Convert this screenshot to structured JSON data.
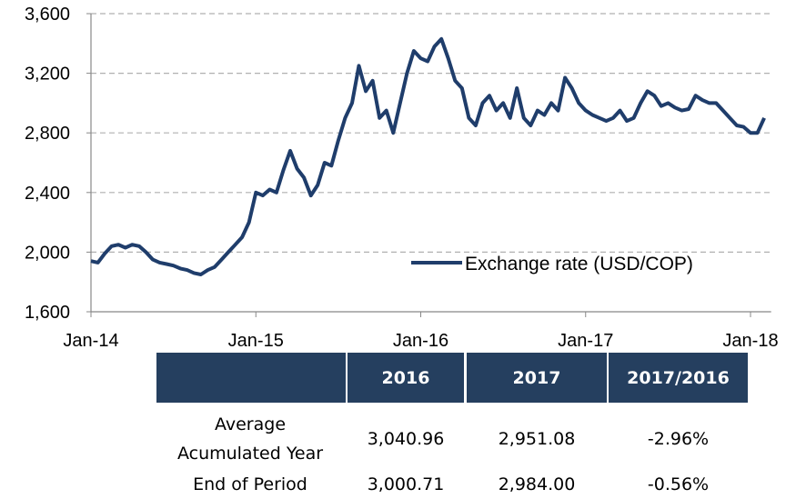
{
  "chart_data": {
    "type": "line",
    "x": [
      0,
      0.5,
      1,
      1.5,
      2,
      2.5,
      3,
      3.5,
      4,
      4.5,
      5,
      5.5,
      6,
      6.5,
      7,
      7.5,
      8,
      8.5,
      9,
      9.5,
      10,
      10.5,
      11,
      11.5,
      12,
      12.5,
      13,
      13.5,
      14,
      14.5,
      15,
      15.5,
      16,
      16.5,
      17,
      17.5,
      18,
      18.5,
      19,
      19.5,
      20,
      20.5,
      21,
      21.5,
      22,
      22.5,
      23,
      23.5,
      24,
      24.5,
      25,
      25.5,
      26,
      26.5,
      27,
      27.5,
      28,
      28.5,
      29,
      29.5,
      30,
      30.5,
      31,
      31.5,
      32,
      32.5,
      33,
      33.5,
      34,
      34.5,
      35,
      35.5,
      36,
      36.5,
      37,
      37.5,
      38,
      38.5,
      39,
      39.5,
      40,
      40.5,
      41,
      41.5,
      42,
      42.5,
      43,
      43.5,
      44,
      44.5,
      45,
      45.5,
      46,
      46.5,
      47,
      47.5,
      48,
      48.5,
      49
    ],
    "series": [
      {
        "name": "Exchange rate (USD/COP)",
        "color": "#1f3d6b",
        "values": [
          1940,
          1930,
          1990,
          2040,
          2050,
          2030,
          2050,
          2040,
          2000,
          1950,
          1930,
          1920,
          1910,
          1890,
          1880,
          1860,
          1850,
          1880,
          1900,
          1950,
          2000,
          2050,
          2100,
          2200,
          2400,
          2380,
          2420,
          2400,
          2550,
          2680,
          2560,
          2500,
          2380,
          2450,
          2600,
          2580,
          2750,
          2900,
          3000,
          3250,
          3080,
          3150,
          2900,
          2950,
          2800,
          3000,
          3200,
          3350,
          3300,
          3280,
          3380,
          3430,
          3300,
          3150,
          3100,
          2900,
          2850,
          3000,
          3050,
          2950,
          3000,
          2900,
          3100,
          2900,
          2850,
          2950,
          2920,
          3000,
          2950,
          3170,
          3100,
          3000,
          2950,
          2920,
          2900,
          2880,
          2900,
          2950,
          2880,
          2900,
          3000,
          3080,
          3050,
          2980,
          3000,
          2970,
          2950,
          2960,
          3050,
          3020,
          3000,
          3000,
          2950,
          2900,
          2850,
          2840,
          2800,
          2800,
          2900
        ]
      }
    ],
    "xlim": [
      0,
      49.5
    ],
    "xticks": [
      {
        "value": 0,
        "label": "Jan-14"
      },
      {
        "value": 12,
        "label": "Jan-15"
      },
      {
        "value": 24,
        "label": "Jan-16"
      },
      {
        "value": 36,
        "label": "Jan-17"
      },
      {
        "value": 48,
        "label": "Jan-18"
      }
    ],
    "ylim": [
      1600,
      3600
    ],
    "yticks": [
      {
        "value": 1600,
        "label": "1,600"
      },
      {
        "value": 2000,
        "label": "2,000"
      },
      {
        "value": 2400,
        "label": "2,400"
      },
      {
        "value": 2800,
        "label": "2,800"
      },
      {
        "value": 3200,
        "label": "3,200"
      },
      {
        "value": 3600,
        "label": "3,600"
      }
    ],
    "grid": true
  },
  "table": {
    "header": [
      "2016",
      "2017",
      "2017/2016"
    ],
    "rows": [
      [
        "Average Acumulated Year",
        "3,040.96",
        "2,951.08",
        "-2.96%"
      ],
      [
        "End of Period",
        "3,000.71",
        "2,984.00",
        "-0.56%"
      ]
    ]
  }
}
